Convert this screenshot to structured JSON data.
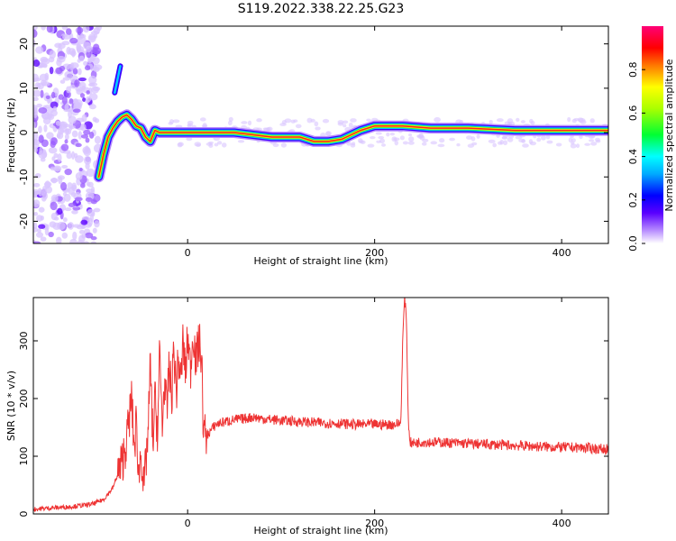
{
  "title": "S119.2022.338.22.25.G23",
  "colors": {
    "snr_line": "#ee3333",
    "frame": "#000000",
    "background": "#ffffff"
  },
  "chart_data": [
    {
      "type": "heatmap",
      "xlabel": "Height of straight line (km)",
      "ylabel": "Frequency (Hz)",
      "xlim": [
        -165,
        450
      ],
      "ylim": [
        -25,
        24
      ],
      "xticks": [
        0,
        200,
        400
      ],
      "yticks": [
        -20,
        -10,
        0,
        10,
        20
      ],
      "grid": false,
      "colorbar": {
        "label": "Normalized spectral amplitude",
        "range": [
          0.0,
          1.0
        ],
        "ticks": [
          "0.0",
          "0.2",
          "0.4",
          "0.6",
          "0.8"
        ],
        "colormap": "rainbow (white-purple-blue-cyan-green-yellow-red-magenta)"
      },
      "ridge": {
        "description": "Dominant spectral ridge (center frequency vs height)",
        "x": [
          -95,
          -90,
          -85,
          -80,
          -75,
          -70,
          -65,
          -60,
          -55,
          -50,
          -45,
          -40,
          -35,
          -30,
          -20,
          0,
          50,
          90,
          120,
          135,
          150,
          165,
          175,
          185,
          200,
          230,
          260,
          300,
          350,
          400,
          450
        ],
        "y": [
          -10,
          -5,
          -1,
          1,
          2.5,
          3.5,
          4,
          3,
          1.5,
          1,
          -1,
          -2,
          0.5,
          0,
          0,
          0,
          0,
          -1,
          -1,
          -2,
          -2,
          -1.5,
          -0.5,
          0.5,
          1.5,
          1.5,
          1,
          1,
          0.5,
          0.5,
          0.5
        ]
      },
      "spur": {
        "description": "Isolated high-frequency trace",
        "x": [
          -78,
          -75,
          -72
        ],
        "y": [
          9,
          12,
          15
        ]
      },
      "noise_region_x": [
        -165,
        -95
      ]
    },
    {
      "type": "line",
      "xlabel": "Height of straight line (km)",
      "ylabel": "SNR (10 * v/v)",
      "xlim": [
        -165,
        450
      ],
      "ylim": [
        0,
        375
      ],
      "xticks": [
        0,
        200,
        400
      ],
      "yticks": [
        0,
        100,
        200,
        300
      ],
      "grid": false,
      "series": [
        {
          "x": [
            -165,
            -150,
            -130,
            -110,
            -100,
            -90,
            -80,
            -70,
            -65,
            -60,
            -57,
            -55,
            -52,
            -50,
            -47,
            -45,
            -42,
            -40,
            -37,
            -35,
            -32,
            -30,
            -27,
            -25,
            -22,
            -20,
            -17,
            -15,
            -12,
            -10,
            -7,
            -5,
            -2,
            0,
            3,
            6,
            9,
            12,
            15,
            17,
            20,
            25,
            30,
            40,
            50,
            60,
            70,
            80,
            100,
            120,
            140,
            160,
            180,
            200,
            220,
            228,
            230,
            232,
            234,
            236,
            238,
            240,
            250,
            270,
            300,
            330,
            360,
            390,
            420,
            450
          ],
          "y": [
            8,
            10,
            12,
            15,
            18,
            25,
            45,
            90,
            130,
            200,
            110,
            160,
            60,
            120,
            40,
            80,
            150,
            260,
            120,
            200,
            140,
            280,
            150,
            230,
            170,
            260,
            200,
            290,
            210,
            270,
            230,
            300,
            240,
            310,
            250,
            320,
            260,
            300,
            270,
            140,
            135,
            145,
            155,
            160,
            163,
            165,
            168,
            165,
            162,
            160,
            158,
            157,
            155,
            155,
            155,
            157,
            300,
            375,
            340,
            160,
            125,
            122,
            125,
            124,
            122,
            120,
            118,
            116,
            115,
            112
          ]
        }
      ]
    }
  ]
}
